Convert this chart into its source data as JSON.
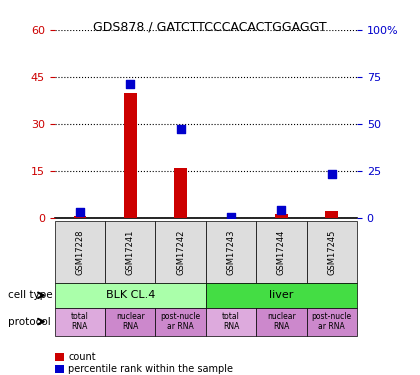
{
  "title": "GDS878 / GATCTTCCCACACTGGAGGT",
  "samples": [
    "GSM17228",
    "GSM17241",
    "GSM17242",
    "GSM17243",
    "GSM17244",
    "GSM17245"
  ],
  "counts": [
    0.5,
    40,
    16,
    0,
    1,
    2
  ],
  "percentiles": [
    3,
    71,
    47,
    0.3,
    4,
    23
  ],
  "ylim_left": [
    0,
    60
  ],
  "ylim_right": [
    0,
    100
  ],
  "yticks_left": [
    0,
    15,
    30,
    45,
    60
  ],
  "yticks_right": [
    0,
    25,
    50,
    75,
    100
  ],
  "bar_color": "#cc0000",
  "dot_color": "#0000cc",
  "cell_types": [
    {
      "label": "BLK CL.4",
      "start": 0,
      "end": 3,
      "color": "#aaffaa"
    },
    {
      "label": "liver",
      "start": 3,
      "end": 6,
      "color": "#44dd44"
    }
  ],
  "label_cell_type": "cell type",
  "label_protocol": "protocol",
  "legend_count": "count",
  "legend_percentile": "percentile rank within the sample",
  "tick_left_color": "#cc0000",
  "tick_right_color": "#0000cc",
  "sample_area_color": "#dddddd",
  "proto_colors": [
    "#ddaadd",
    "#cc88cc",
    "#cc88cc",
    "#ddaadd",
    "#cc88cc",
    "#cc88cc"
  ],
  "proto_labels": [
    "total\nRNA",
    "nuclear\nRNA",
    "post-nucle\nar RNA",
    "total\nRNA",
    "nuclear\nRNA",
    "post-nucle\nar RNA"
  ]
}
